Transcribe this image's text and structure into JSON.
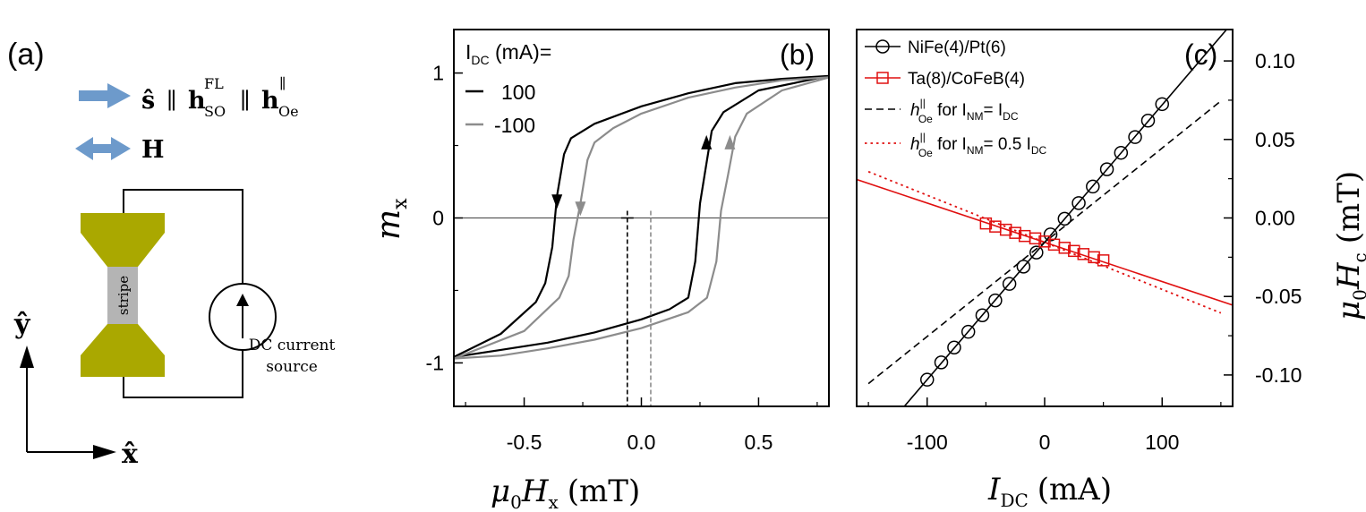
{
  "panel_a": {
    "label": "(a)",
    "arrow1_colour": "#6d9acb",
    "eq1_s": "ŝ",
    "eq1_par1": "∥",
    "eq1_h1": "h",
    "eq1_h1_sub": "SO",
    "eq1_h1_sup": "FL",
    "eq1_par2": "∥",
    "eq1_h2": "h",
    "eq1_h2_sub": "Oe",
    "eq1_h2_sup": "∥",
    "eq2_h": "H",
    "stripe_label": "stripe",
    "pad_colour": "#aaa800",
    "stripe_colour": "#b4b4b4",
    "source_line1": "DC current",
    "source_line2": "source",
    "axis_y": "ŷ",
    "axis_x": "x̂"
  },
  "chart_data": [
    {
      "type": "line",
      "panel": "(b)",
      "xlabel_main": "μ",
      "xlabel_sub": "0",
      "xlabel_var": "H",
      "xlabel_var_sub": "x",
      "xlabel_unit": "(mT)",
      "ylabel_main": "m",
      "ylabel_sub": "x",
      "xlim": [
        -0.8,
        0.8
      ],
      "ylim": [
        -1.3,
        1.3
      ],
      "xticks": [
        -0.5,
        0.0,
        0.5
      ],
      "xtick_labels": [
        "-0.5",
        "0.0",
        "0.5"
      ],
      "yticks": [
        -1,
        0,
        1
      ],
      "ytick_labels": [
        "-1",
        "0",
        "1"
      ],
      "legend_title_pre": "I",
      "legend_title_sub": "DC",
      "legend_title_post": " (mA)=",
      "series": [
        {
          "name": "100",
          "colour": "#000000",
          "coercive_field": -0.06,
          "descending": [
            [
              0.8,
              0.98
            ],
            [
              0.6,
              0.96
            ],
            [
              0.4,
              0.93
            ],
            [
              0.2,
              0.86
            ],
            [
              0.0,
              0.77
            ],
            [
              -0.2,
              0.65
            ],
            [
              -0.3,
              0.55
            ],
            [
              -0.33,
              0.44
            ],
            [
              -0.36,
              0.15
            ],
            [
              -0.38,
              -0.2
            ],
            [
              -0.41,
              -0.45
            ],
            [
              -0.45,
              -0.58
            ],
            [
              -0.6,
              -0.8
            ],
            [
              -0.8,
              -0.96
            ]
          ],
          "ascending": [
            [
              -0.8,
              -0.96
            ],
            [
              -0.6,
              -0.91
            ],
            [
              -0.4,
              -0.86
            ],
            [
              -0.2,
              -0.79
            ],
            [
              0.0,
              -0.7
            ],
            [
              0.12,
              -0.63
            ],
            [
              0.2,
              -0.55
            ],
            [
              0.23,
              -0.3
            ],
            [
              0.25,
              0.1
            ],
            [
              0.27,
              0.3
            ],
            [
              0.3,
              0.6
            ],
            [
              0.35,
              0.73
            ],
            [
              0.5,
              0.88
            ],
            [
              0.8,
              0.98
            ]
          ]
        },
        {
          "name": "-100",
          "colour": "#8c8c8c",
          "coercive_field": 0.04,
          "descending": [
            [
              0.8,
              0.97
            ],
            [
              0.6,
              0.95
            ],
            [
              0.4,
              0.9
            ],
            [
              0.2,
              0.83
            ],
            [
              0.0,
              0.72
            ],
            [
              -0.12,
              0.62
            ],
            [
              -0.2,
              0.52
            ],
            [
              -0.23,
              0.4
            ],
            [
              -0.26,
              0.1
            ],
            [
              -0.29,
              -0.15
            ],
            [
              -0.31,
              -0.4
            ],
            [
              -0.35,
              -0.55
            ],
            [
              -0.5,
              -0.78
            ],
            [
              -0.8,
              -0.97
            ]
          ],
          "ascending": [
            [
              -0.8,
              -0.97
            ],
            [
              -0.6,
              -0.95
            ],
            [
              -0.4,
              -0.9
            ],
            [
              -0.2,
              -0.84
            ],
            [
              0.0,
              -0.76
            ],
            [
              0.2,
              -0.65
            ],
            [
              0.28,
              -0.55
            ],
            [
              0.32,
              -0.3
            ],
            [
              0.34,
              0.05
            ],
            [
              0.37,
              0.3
            ],
            [
              0.4,
              0.56
            ],
            [
              0.45,
              0.72
            ],
            [
              0.6,
              0.88
            ],
            [
              0.8,
              0.97
            ]
          ]
        }
      ],
      "coercive_markers": [
        -0.06,
        0.04
      ],
      "grid": false
    },
    {
      "type": "line",
      "panel": "(c)",
      "xlabel_var": "I",
      "xlabel_var_sub": "DC",
      "xlabel_unit": "(mA)",
      "ylabel_main": "μ",
      "ylabel_sub": "0",
      "ylabel_var": "H",
      "ylabel_var_sub": "c",
      "ylabel_unit": "(mT)",
      "y_axis_position": "right",
      "xlim": [
        -160,
        160
      ],
      "ylim": [
        -0.12,
        0.12
      ],
      "xticks": [
        -100,
        0,
        100
      ],
      "xtick_labels": [
        "-100",
        "0",
        "100"
      ],
      "yticks": [
        -0.1,
        -0.05,
        0.0,
        0.05,
        0.1
      ],
      "ytick_labels": [
        "-0.10",
        "-0.05",
        "0.00",
        "0.05",
        "0.10"
      ],
      "legend_placement": "top-left",
      "series": [
        {
          "name": "NiFe(4)/Pt(6)",
          "colour": "#000000",
          "marker": "circle",
          "x": [
            -100,
            -88,
            -77,
            -65,
            -53,
            -42,
            -30,
            -18,
            -7,
            5,
            17,
            29,
            41,
            53,
            65,
            77,
            88,
            100
          ],
          "y": [
            -0.103,
            -0.092,
            -0.0825,
            -0.0725,
            -0.062,
            -0.0525,
            -0.042,
            -0.031,
            -0.022,
            -0.0105,
            -0.0005,
            0.0095,
            0.02,
            0.031,
            0.0415,
            0.0515,
            0.062,
            0.0725
          ],
          "fit_slope": 0.000875,
          "fit_intercept": -0.0155
        },
        {
          "name": "Ta(8)/CoFeB(4)",
          "colour": "#e01010",
          "marker": "square",
          "x": [
            -50,
            -42,
            -33,
            -25,
            -17,
            -8,
            0,
            8,
            17,
            25,
            33,
            42,
            50
          ],
          "y": [
            -0.0035,
            -0.0055,
            -0.0075,
            -0.0095,
            -0.0115,
            -0.013,
            -0.015,
            -0.017,
            -0.019,
            -0.021,
            -0.023,
            -0.025,
            -0.027
          ],
          "fit_slope": -0.00025,
          "fit_intercept": -0.0155
        },
        {
          "name": "h",
          "name_sup": "||",
          "name_sub": "Oe",
          "name_rest": " for I",
          "name_rest_sub": "NM",
          "name_end": "= I",
          "name_end_sub": "DC",
          "colour": "#000000",
          "style": "dashed",
          "fit_slope": 0.0006,
          "fit_intercept": -0.0155
        },
        {
          "name": "h",
          "name_sup": "||",
          "name_sub": "Oe",
          "name_rest": " for I",
          "name_rest_sub": "NM",
          "name_end": "= 0.5 I",
          "name_end_sub": "DC",
          "colour": "#e01010",
          "style": "dotted",
          "fit_slope": -0.0003,
          "fit_intercept": -0.0155
        }
      ],
      "grid": false
    }
  ]
}
